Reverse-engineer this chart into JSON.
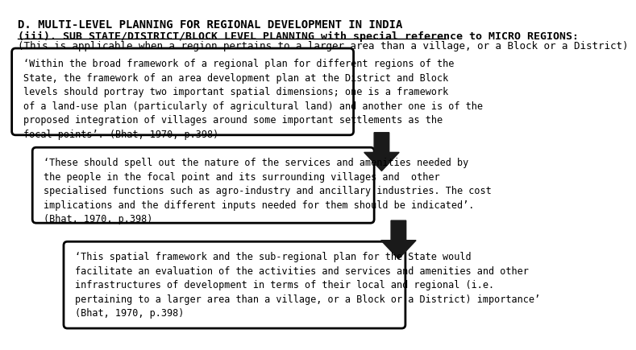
{
  "title": "D. MULTI-LEVEL PLANNING FOR REGIONAL DEVELOPMENT IN INDIA",
  "subtitle": "(iii). SUB STATE/DISTRICT/BLOCK LEVEL PLANNING with special reference to MICRO REGIONS:",
  "subtitle_note": "(This is applicable when a region pertains to a larger area than a village, or a Block or a District)",
  "box1_text": "‘Within the broad framework of a regional plan for different regions of the\nState, the framework of an area development plan at the District and Block\nlevels should portray two important spatial dimensions; one is a framework\nof a land-use plan (particularly of agricultural land) and another one is of the\nproposed integration of villages around some important settlements as the\nfocal points’. (Bhat, 1970, p.398)",
  "box2_text": "‘These should spell out the nature of the services and amenities needed by\nthe people in the focal point and its surrounding villages and  other\nspecialised functions such as agro-industry and ancillary industries. The cost\nimplications and the different inputs needed for them should be indicated’.\n(Bhat, 1970, p.398)",
  "box3_text": "‘This spatial framework and the sub-regional plan for the State would\nfacilitate an evaluation of the activities and services and amenities and other\ninfrastructures of development in terms of their local and regional (i.e.\npertaining to a larger area than a village, or a Block or a District) importance’\n(Bhat, 1970, p.398)",
  "bg_color": "#ffffff",
  "box_edge_color": "#000000",
  "arrow_color": "#1a1a1a",
  "text_color": "#000000",
  "font_size_title": 10,
  "font_size_subtitle": 9.5,
  "font_size_note": 9,
  "font_size_box": 8.5
}
